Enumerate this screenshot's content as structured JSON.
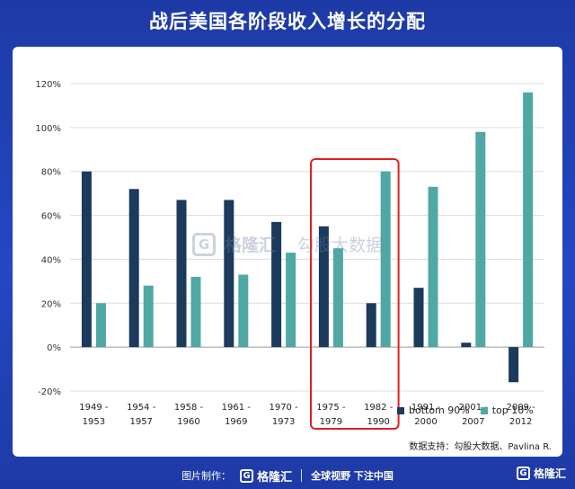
{
  "page": {
    "title": "战后美国各阶段收入增长的分配",
    "source": "数据支持：勾股大数据、Pavlina R.",
    "watermark_brand": "格隆汇",
    "watermark_partner": "勾股大数据",
    "footer_label": "图片制作：",
    "footer_brand": "格隆汇",
    "footer_slogan": "全球视野 下注中国",
    "corner_brand": "格隆汇",
    "logo_glyph": "G"
  },
  "chart_data": {
    "type": "bar",
    "categories": [
      [
        "1949 -",
        "1953"
      ],
      [
        "1954 -",
        "1957"
      ],
      [
        "1958 -",
        "1960"
      ],
      [
        "1961 -",
        "1969"
      ],
      [
        "1970 -",
        "1973"
      ],
      [
        "1975 -",
        "1979"
      ],
      [
        "1982 -",
        "1990"
      ],
      [
        "1991 -",
        "2000"
      ],
      [
        "2001 -",
        "2007"
      ],
      [
        "2009 -",
        "2012"
      ]
    ],
    "series": [
      {
        "name": "bottom 90%",
        "color": "#1b3a5c",
        "values": [
          80,
          72,
          67,
          67,
          57,
          55,
          20,
          27,
          2,
          -16
        ]
      },
      {
        "name": "top 10%",
        "color": "#4fa8a4",
        "values": [
          20,
          28,
          32,
          33,
          43,
          45,
          80,
          73,
          98,
          116
        ]
      }
    ],
    "ylim": [
      -20,
      120
    ],
    "yticks": [
      "-20%",
      "0%",
      "20%",
      "40%",
      "60%",
      "80%",
      "100%",
      "120%"
    ],
    "ytick_values": [
      -20,
      0,
      20,
      40,
      60,
      80,
      100,
      120
    ],
    "grid": true,
    "legend_position": "bottom-right",
    "highlight": {
      "from_category": 5,
      "to_category": 6,
      "color": "#e02020"
    }
  }
}
